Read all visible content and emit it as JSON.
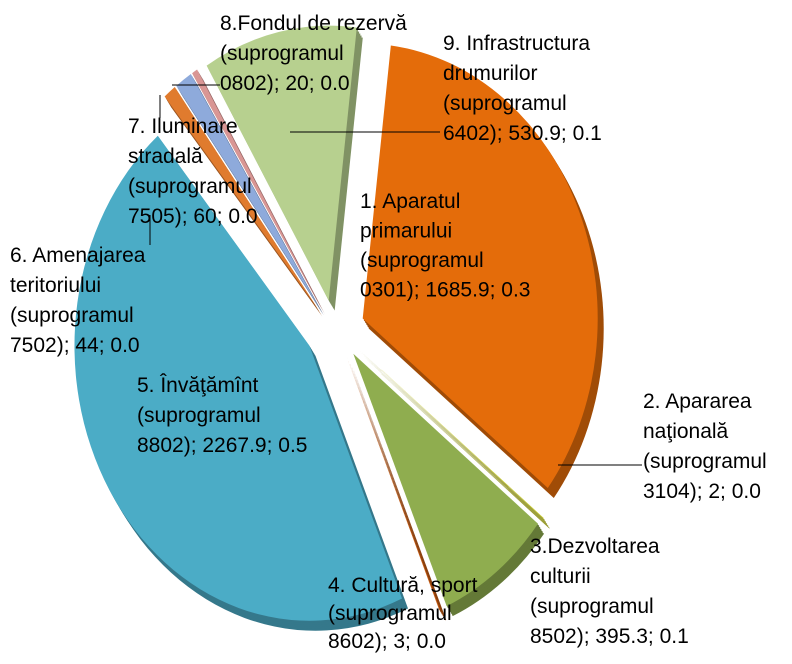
{
  "chart_data": {
    "type": "pie",
    "labels": [
      [
        "1. Aparatul",
        "primarului",
        "(suprogramul",
        "0301); 1685.9; 0.3"
      ],
      [
        "2. Apararea",
        "naţională",
        "(suprogramul",
        "3104); 2; 0.0"
      ],
      [
        "3.Dezvoltarea",
        "culturii",
        "(suprogramul",
        "8502); 395.3; 0.1"
      ],
      [
        "4. Cultură, sport",
        "(suprogramul",
        "8602); 3; 0.0"
      ],
      [
        "5. Învăţămînt",
        "(suprogramul",
        "8802); 2267.9; 0.5"
      ],
      [
        "6. Amenajarea",
        "teritoriului",
        "(suprogramul",
        "7502); 44; 0.0"
      ],
      [
        "7. Iluminare",
        "stradală",
        "(suprogramul",
        "7505); 60; 0.0"
      ],
      [
        "8.Fondul de rezervă",
        "(suprogramul",
        "0802); 20; 0.0"
      ],
      [
        "9. Infrastructura",
        "drumurilor",
        "(suprogramul",
        "6402); 530.9; 0.1"
      ]
    ],
    "values": [
      1685.9,
      2,
      395.3,
      3,
      2267.9,
      44,
      60,
      20,
      530.9
    ],
    "colors": [
      "#e46c0a",
      "#c4c81a",
      "#8fad4f",
      "#c55a11",
      "#4bacc6",
      "#e07b2e",
      "#8eaadb",
      "#d99694",
      "#b7d08f"
    ]
  }
}
